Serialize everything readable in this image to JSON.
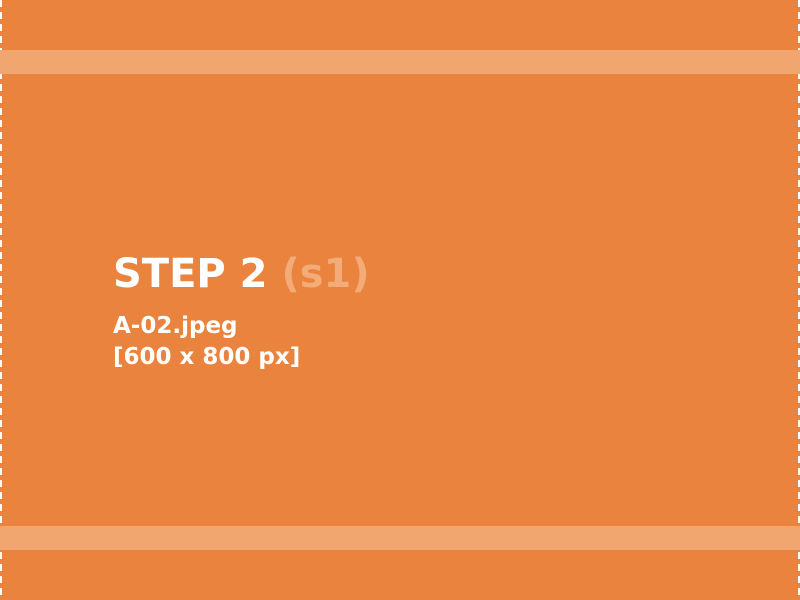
{
  "step": {
    "title": "STEP 2",
    "variant": "(s1)"
  },
  "file": {
    "name": "A-02.jpeg",
    "dimensions": "[600 x 800 px]"
  },
  "colors": {
    "background": "#e9833e",
    "band": "#f1a56f",
    "accent_text": "#f3ab78",
    "text": "#ffffff"
  }
}
